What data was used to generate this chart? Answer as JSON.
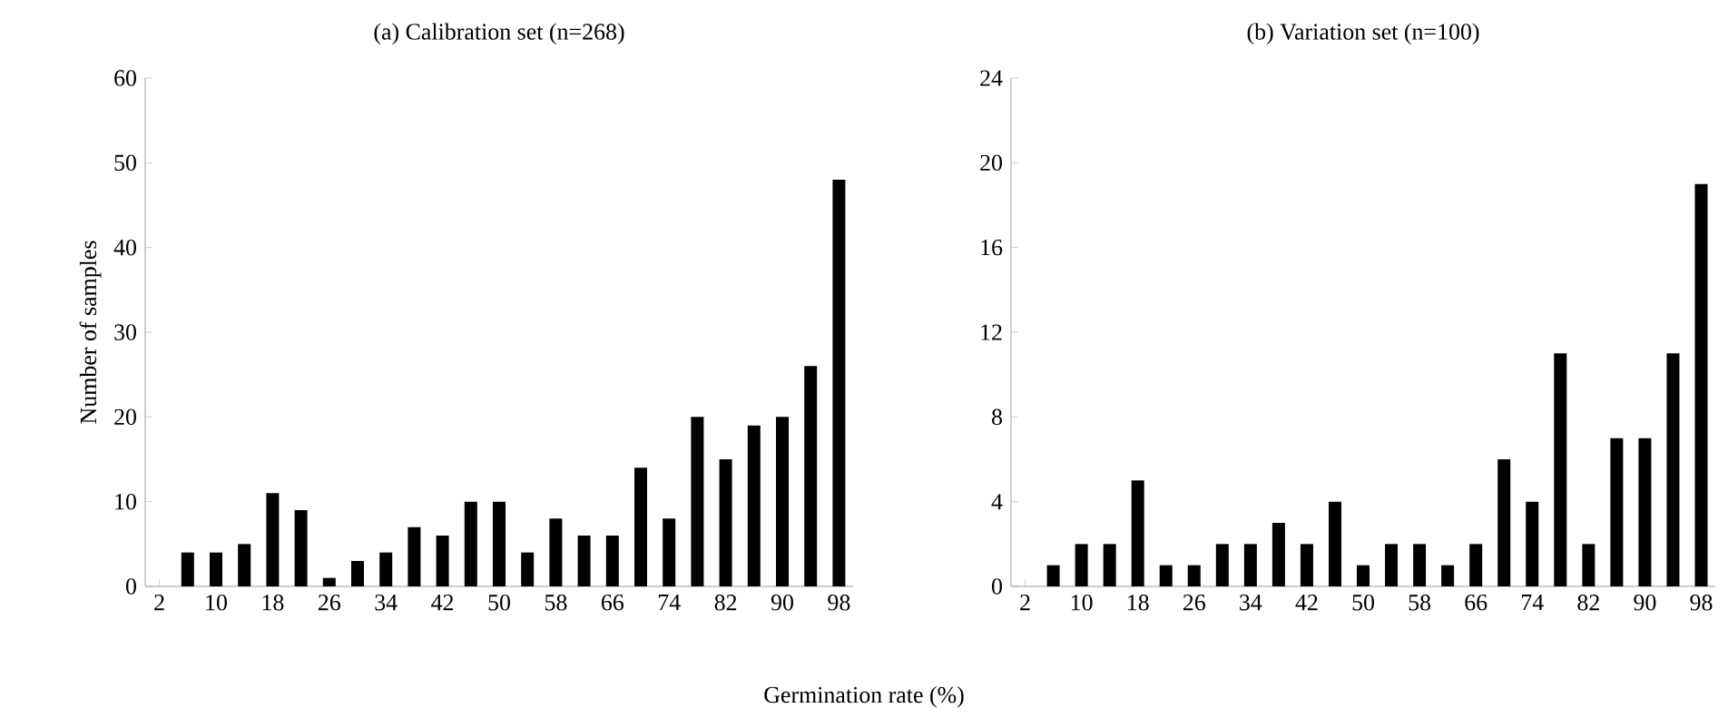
{
  "chart_data": [
    {
      "type": "bar",
      "title": "(a) Calibration set (n=268)",
      "ylabel": "Number of samples",
      "xlabel": "Germination rate (%)",
      "categories": [
        "2",
        null,
        "10",
        null,
        "18",
        null,
        "26",
        null,
        "34",
        null,
        "42",
        null,
        "50",
        null,
        "58",
        null,
        "66",
        null,
        "74",
        null,
        "82",
        null,
        "90",
        null,
        "98"
      ],
      "values": [
        0,
        4,
        4,
        5,
        11,
        9,
        1,
        3,
        4,
        7,
        6,
        10,
        10,
        4,
        8,
        6,
        6,
        14,
        8,
        20,
        15,
        19,
        20,
        26,
        48
      ],
      "color": "#000000",
      "ylim": [
        0,
        60
      ],
      "yticks": [
        0,
        10,
        20,
        30,
        40,
        50,
        60
      ],
      "grid": false
    },
    {
      "type": "bar",
      "title": "(b) Variation set (n=100)",
      "categories": [
        "2",
        null,
        "10",
        null,
        "18",
        null,
        "26",
        null,
        "34",
        null,
        "42",
        null,
        "50",
        null,
        "58",
        null,
        "66",
        null,
        "74",
        null,
        "82",
        null,
        "90",
        null,
        "98"
      ],
      "values": [
        0,
        1,
        2,
        2,
        5,
        1,
        1,
        2,
        2,
        3,
        2,
        4,
        1,
        2,
        2,
        1,
        2,
        6,
        4,
        11,
        2,
        7,
        7,
        11,
        19
      ],
      "color": "#000000",
      "ylim": [
        0,
        24
      ],
      "yticks": [
        0,
        4,
        8,
        12,
        16,
        20,
        24
      ],
      "grid": false
    }
  ]
}
